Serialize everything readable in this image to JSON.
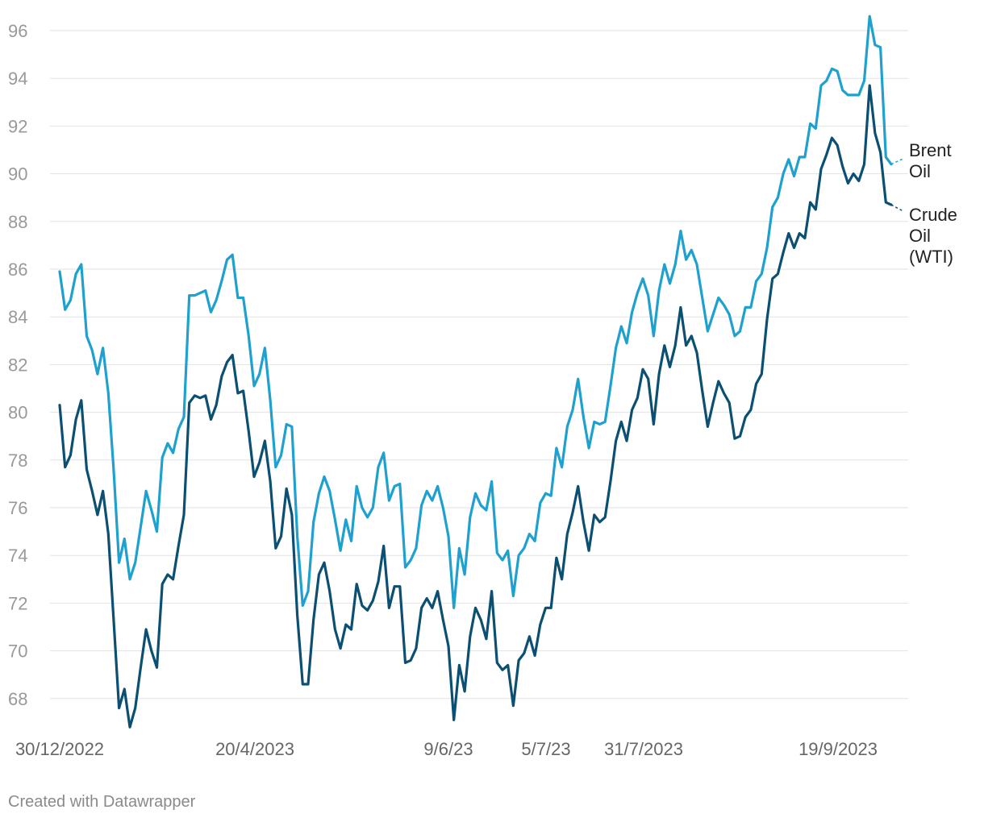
{
  "credit": "Created with Datawrapper",
  "chart_data": {
    "type": "line",
    "title": "",
    "xlabel": "",
    "ylabel": "",
    "ylim": [
      67,
      97
    ],
    "yticks": [
      68,
      70,
      72,
      74,
      76,
      78,
      80,
      82,
      84,
      86,
      88,
      90,
      92,
      94,
      96
    ],
    "xtick_labels": [
      "30/12/2022",
      "20/4/2023",
      "9/6/23",
      "5/7/23",
      "31/7/2023",
      "19/9/2023"
    ],
    "grid": true,
    "legend": "direct labels at right end of lines",
    "series": [
      {
        "name": "Brent Oil",
        "label_lines": [
          "Brent",
          "Oil"
        ],
        "color": "#1ea1cf",
        "values": [
          85.9,
          84.3,
          84.7,
          85.8,
          86.2,
          83.2,
          82.6,
          81.6,
          82.7,
          80.8,
          77.6,
          73.7,
          74.7,
          73.0,
          73.7,
          75.2,
          76.7,
          75.9,
          75.0,
          78.1,
          78.7,
          78.3,
          79.3,
          79.8,
          84.9,
          84.9,
          85.0,
          85.1,
          84.2,
          84.7,
          85.5,
          86.4,
          86.6,
          84.8,
          84.8,
          83.2,
          81.1,
          81.6,
          82.7,
          80.5,
          77.7,
          78.2,
          79.5,
          79.4,
          74.8,
          71.9,
          72.5,
          75.4,
          76.6,
          77.3,
          76.7,
          75.5,
          74.2,
          75.5,
          74.6,
          76.9,
          76.0,
          75.6,
          76.0,
          77.7,
          78.3,
          76.3,
          76.9,
          77.0,
          73.5,
          73.8,
          74.3,
          76.1,
          76.7,
          76.3,
          76.9,
          76.0,
          74.8,
          71.8,
          74.3,
          73.2,
          75.6,
          76.6,
          76.1,
          75.9,
          77.1,
          74.1,
          73.8,
          74.2,
          72.3,
          74.0,
          74.3,
          74.9,
          74.6,
          76.2,
          76.6,
          76.5,
          78.5,
          77.7,
          79.4,
          80.1,
          81.4,
          79.8,
          78.5,
          79.6,
          79.5,
          79.6,
          81.1,
          82.7,
          83.6,
          82.9,
          84.2,
          85.0,
          85.6,
          84.9,
          83.2,
          85.1,
          86.2,
          85.4,
          86.2,
          87.6,
          86.4,
          86.8,
          86.2,
          84.8,
          83.4,
          84.1,
          84.8,
          84.5,
          84.1,
          83.2,
          83.4,
          84.4,
          84.4,
          85.5,
          85.8,
          86.9,
          88.6,
          89.0,
          90.0,
          90.6,
          89.9,
          90.7,
          90.7,
          92.1,
          91.9,
          93.7,
          93.9,
          94.4,
          94.3,
          93.5,
          93.3,
          93.3,
          93.3,
          93.9,
          96.6,
          95.4,
          95.3,
          90.7,
          90.4
        ]
      },
      {
        "name": "Crude Oil (WTI)",
        "label_lines": [
          "Crude",
          "Oil",
          "(WTI)"
        ],
        "color": "#0b4f72",
        "values": [
          80.3,
          77.7,
          78.2,
          79.7,
          80.5,
          77.6,
          76.7,
          75.7,
          76.7,
          74.9,
          71.3,
          67.6,
          68.4,
          66.8,
          67.6,
          69.3,
          70.9,
          70.0,
          69.3,
          72.8,
          73.2,
          73.0,
          74.4,
          75.7,
          80.4,
          80.7,
          80.6,
          80.7,
          79.7,
          80.3,
          81.5,
          82.1,
          82.4,
          80.8,
          80.9,
          79.2,
          77.3,
          77.9,
          78.8,
          77.1,
          74.3,
          74.8,
          76.8,
          75.7,
          71.5,
          68.6,
          68.6,
          71.3,
          73.2,
          73.7,
          72.5,
          70.9,
          70.1,
          71.1,
          70.9,
          72.8,
          71.9,
          71.7,
          72.1,
          72.9,
          74.4,
          71.8,
          72.7,
          72.7,
          69.5,
          69.6,
          70.1,
          71.8,
          72.2,
          71.8,
          72.5,
          71.3,
          70.2,
          67.1,
          69.4,
          68.3,
          70.6,
          71.8,
          71.3,
          70.5,
          72.5,
          69.5,
          69.2,
          69.4,
          67.7,
          69.6,
          69.9,
          70.6,
          69.8,
          71.1,
          71.8,
          71.8,
          73.9,
          73.0,
          74.9,
          75.8,
          76.9,
          75.4,
          74.2,
          75.7,
          75.4,
          75.6,
          77.1,
          78.8,
          79.6,
          78.8,
          80.1,
          80.6,
          81.8,
          81.4,
          79.5,
          81.6,
          82.8,
          81.9,
          82.8,
          84.4,
          82.8,
          83.2,
          82.5,
          80.9,
          79.4,
          80.4,
          81.3,
          80.8,
          80.4,
          78.9,
          79.0,
          79.8,
          80.1,
          81.2,
          81.6,
          83.9,
          85.6,
          85.8,
          86.7,
          87.5,
          86.9,
          87.5,
          87.3,
          88.8,
          88.5,
          90.2,
          90.8,
          91.5,
          91.2,
          90.3,
          89.6,
          90.0,
          89.7,
          90.4,
          93.7,
          91.7,
          90.9,
          88.8,
          88.7
        ]
      }
    ]
  }
}
